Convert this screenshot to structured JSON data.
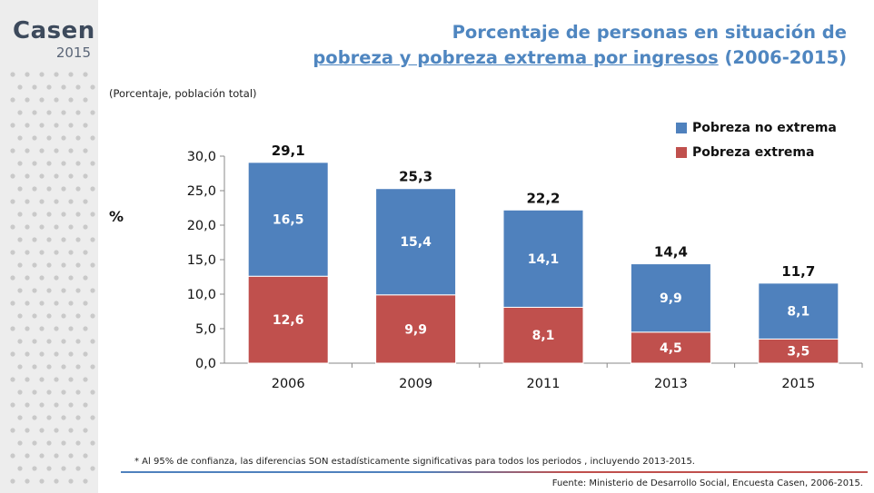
{
  "brand": {
    "name": "Casen",
    "year": "2015"
  },
  "title": {
    "line1": "Porcentaje de personas en situación de",
    "line2_underlined": "pobreza y pobreza extrema por ingresos",
    "line2_rest": " (2006-2015)"
  },
  "footnote": "* Al 95% de confianza, las diferencias SON estadísticamente significativas para todos los periodos , incluyendo 2013-2015.",
  "source": "Fuente: Ministerio de Desarrollo Social, Encuesta Casen, 2006-2015.",
  "colors": {
    "blue": "#4f81bd",
    "red": "#c0504d",
    "title": "#4f86c0"
  },
  "chart_data": {
    "type": "bar",
    "stacked": true,
    "title": "Porcentaje de personas en situación de pobreza y pobreza extrema por ingresos (2006-2015)",
    "subtitle": "(Porcentaje, población total)",
    "ylabel": "%",
    "xlabel": "",
    "ylim": [
      0,
      30
    ],
    "yticks": [
      "0,0",
      "5,0",
      "10,0",
      "15,0",
      "20,0",
      "25,0",
      "30,0"
    ],
    "categories": [
      "2006",
      "2009",
      "2011",
      "2013",
      "2015"
    ],
    "series": [
      {
        "name": "Pobreza extrema",
        "color": "#c0504d",
        "values": [
          12.6,
          9.9,
          8.1,
          4.5,
          3.5
        ],
        "labels": [
          "12,6",
          "9,9",
          "8,1",
          "4,5",
          "3,5"
        ]
      },
      {
        "name": "Pobreza no extrema",
        "color": "#4f81bd",
        "values": [
          16.5,
          15.4,
          14.1,
          9.9,
          8.1
        ],
        "labels": [
          "16,5",
          "15,4",
          "14,1",
          "9,9",
          "8,1"
        ]
      }
    ],
    "totals": [
      29.1,
      25.3,
      22.2,
      14.4,
      11.7
    ],
    "total_labels": [
      "29,1",
      "25,3",
      "22,2",
      "14,4",
      "11,7"
    ],
    "legend": [
      "Pobreza no extrema",
      "Pobreza extrema"
    ],
    "legend_position": "top-right"
  }
}
